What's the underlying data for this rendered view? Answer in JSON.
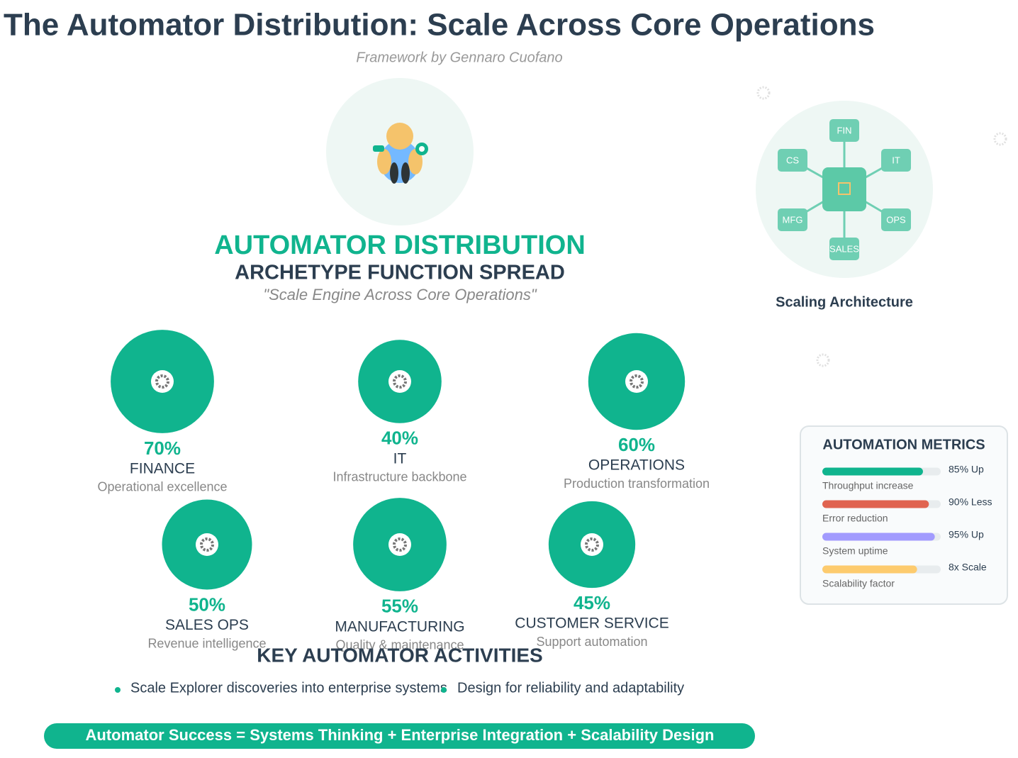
{
  "header": {
    "title": "The Automator Distribution: Scale Across Core Operations",
    "subtitle": "Framework by Gennaro Cuofano"
  },
  "hero": {
    "title": "AUTOMATOR DISTRIBUTION",
    "subtitle": "ARCHETYPE FUNCTION SPREAD",
    "tagline": "\"Scale Engine Across Core Operations\""
  },
  "functions": [
    {
      "share": {
        "value": 70,
        "label": "70%"
      },
      "name": "FINANCE",
      "description": "Operational excellence"
    },
    {
      "share": {
        "value": 40,
        "label": "40%"
      },
      "name": "IT",
      "description": "Infrastructure backbone"
    },
    {
      "share": {
        "value": 60,
        "label": "60%"
      },
      "name": "OPERATIONS",
      "description": "Production transformation"
    },
    {
      "share": {
        "value": 50,
        "label": "50%"
      },
      "name": "SALES OPS",
      "description": "Revenue intelligence"
    },
    {
      "share": {
        "value": 55,
        "label": "55%"
      },
      "name": "MANUFACTURING",
      "description": "Quality & maintenance"
    },
    {
      "share": {
        "value": 45,
        "label": "45%"
      },
      "name": "CUSTOMER SERVICE",
      "description": "Support automation"
    }
  ],
  "architecture": {
    "nodes": [
      "FIN",
      "IT",
      "OPS",
      "SALES",
      "MFG",
      "CS"
    ],
    "caption": "Scaling Architecture"
  },
  "metrics": {
    "title": "AUTOMATION METRICS",
    "items": [
      {
        "value_label": "85% Up",
        "fill": 85,
        "label": "Throughput increase",
        "color": "#10b48e"
      },
      {
        "value_label": "90% Less",
        "fill": 90,
        "label": "Error reduction",
        "color": "#e06450"
      },
      {
        "value_label": "95% Up",
        "fill": 95,
        "label": "System uptime",
        "color": "#a29bfe"
      },
      {
        "value_label": "8x Scale",
        "fill": 80,
        "label": "Scalability factor",
        "color": "#fdcb6e"
      }
    ]
  },
  "activities": {
    "title": "KEY AUTOMATOR ACTIVITIES",
    "items": [
      "Scale Explorer discoveries into enterprise systems",
      "Design for reliability and adaptability"
    ]
  },
  "footer": "Automator Success = Systems Thinking + Enterprise Integration + Scalability Design"
}
